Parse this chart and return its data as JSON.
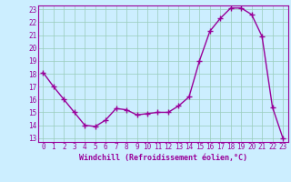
{
  "x": [
    0,
    1,
    2,
    3,
    4,
    5,
    6,
    7,
    8,
    9,
    10,
    11,
    12,
    13,
    14,
    15,
    16,
    17,
    18,
    19,
    20,
    21,
    22,
    23
  ],
  "y": [
    18.1,
    17.0,
    16.0,
    15.0,
    14.0,
    13.9,
    14.4,
    15.3,
    15.2,
    14.8,
    14.9,
    15.0,
    15.0,
    15.5,
    16.2,
    19.0,
    21.3,
    22.3,
    23.1,
    23.1,
    22.6,
    20.9,
    15.4,
    13.0
  ],
  "line_color": "#990099",
  "marker": "+",
  "marker_size": 4,
  "marker_lw": 1.0,
  "line_width": 1.0,
  "xlabel": "Windchill (Refroidissement éolien,°C)",
  "xlabel_color": "#990099",
  "bg_color": "#cceeff",
  "grid_color": "#99ccbb",
  "tick_color": "#990099",
  "ylim": [
    12.7,
    23.3
  ],
  "xlim": [
    -0.5,
    23.5
  ],
  "yticks": [
    13,
    14,
    15,
    16,
    17,
    18,
    19,
    20,
    21,
    22,
    23
  ],
  "xticks": [
    0,
    1,
    2,
    3,
    4,
    5,
    6,
    7,
    8,
    9,
    10,
    11,
    12,
    13,
    14,
    15,
    16,
    17,
    18,
    19,
    20,
    21,
    22,
    23
  ],
  "spine_color": "#990099",
  "tick_fontsize": 5.5,
  "xlabel_fontsize": 6.0,
  "xlabel_fontweight": "bold"
}
